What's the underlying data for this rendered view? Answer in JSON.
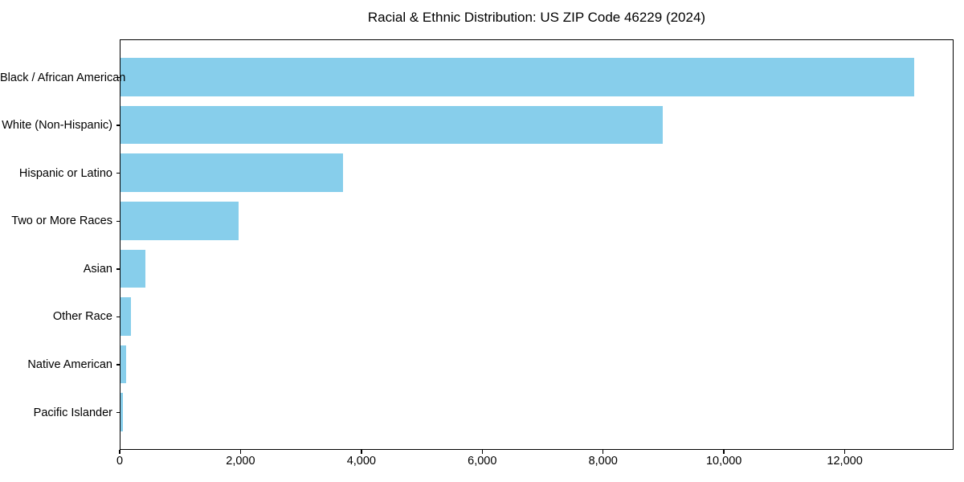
{
  "chart_data": {
    "type": "bar",
    "orientation": "horizontal",
    "title": "Racial & Ethnic Distribution: US ZIP Code 46229 (2024)",
    "categories": [
      "Black / African American",
      "White (Non-Hispanic)",
      "Hispanic or Latino",
      "Two or More Races",
      "Asian",
      "Other Race",
      "Native American",
      "Pacific Islander"
    ],
    "values": [
      13130,
      8970,
      3680,
      1960,
      415,
      170,
      90,
      35
    ],
    "xlabel": "",
    "ylabel": "",
    "xlim": [
      0,
      13800
    ],
    "x_ticks": [
      0,
      2000,
      4000,
      6000,
      8000,
      10000,
      12000
    ],
    "x_tick_labels": [
      "0",
      "2,000",
      "4,000",
      "6,000",
      "8,000",
      "10,000",
      "12,000"
    ],
    "grid": false,
    "legend": "none",
    "bar_color": "#87CEEB",
    "spine_color": "#000000",
    "text_color": "#000000",
    "background_color": "#ffffff"
  }
}
